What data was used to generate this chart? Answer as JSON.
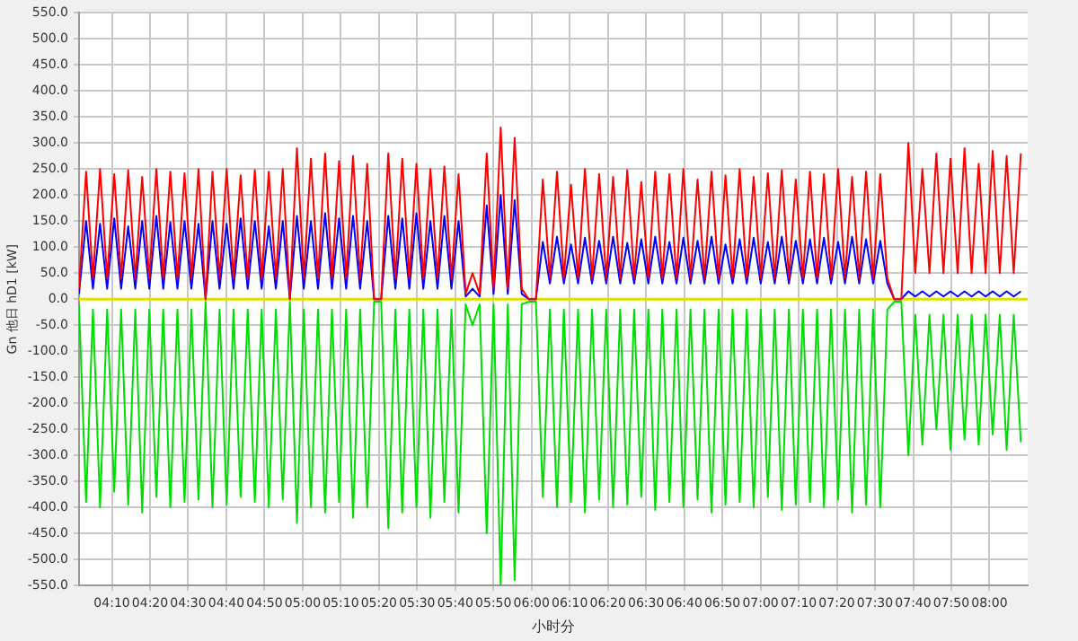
{
  "chart_data": {
    "type": "line",
    "xlabel": "小时分",
    "ylabel": "Gn 他日 hD1 [kW]",
    "marker": "none",
    "line_style": "solid",
    "grid": true,
    "xlim": [
      4.023,
      8.167
    ],
    "xticks": [
      {
        "value": 4.1667,
        "label": "04:10"
      },
      {
        "value": 4.3333,
        "label": "04:20"
      },
      {
        "value": 4.5,
        "label": "04:30"
      },
      {
        "value": 4.6667,
        "label": "04:40"
      },
      {
        "value": 4.8333,
        "label": "04:50"
      },
      {
        "value": 5,
        "label": "05:00"
      },
      {
        "value": 5.1667,
        "label": "05:10"
      },
      {
        "value": 5.3333,
        "label": "05:20"
      },
      {
        "value": 5.5,
        "label": "05:30"
      },
      {
        "value": 5.6667,
        "label": "05:40"
      },
      {
        "value": 5.8333,
        "label": "05:50"
      },
      {
        "value": 6,
        "label": "06:00"
      },
      {
        "value": 6.1667,
        "label": "06:10"
      },
      {
        "value": 6.3333,
        "label": "06:20"
      },
      {
        "value": 6.5,
        "label": "06:30"
      },
      {
        "value": 6.6667,
        "label": "06:40"
      },
      {
        "value": 6.8333,
        "label": "06:50"
      },
      {
        "value": 7,
        "label": "07:00"
      },
      {
        "value": 7.1667,
        "label": "07:10"
      },
      {
        "value": 7.3333,
        "label": "07:20"
      },
      {
        "value": 7.5,
        "label": "07:30"
      },
      {
        "value": 7.6667,
        "label": "07:40"
      },
      {
        "value": 7.8333,
        "label": "07:50"
      },
      {
        "value": 8,
        "label": "08:00"
      }
    ],
    "ylim": [
      -550,
      550
    ],
    "yticks": [
      {
        "value": -550,
        "label": "-550.0"
      },
      {
        "value": -500,
        "label": "-500.0"
      },
      {
        "value": -450,
        "label": "-450.0"
      },
      {
        "value": -400,
        "label": "-400.0"
      },
      {
        "value": -350,
        "label": "-350.0"
      },
      {
        "value": -300,
        "label": "-300.0"
      },
      {
        "value": -250,
        "label": "-250.0"
      },
      {
        "value": -200,
        "label": "-200.0"
      },
      {
        "value": -150,
        "label": "-150.0"
      },
      {
        "value": -100,
        "label": "-100.0"
      },
      {
        "value": -50,
        "label": "-50.0"
      },
      {
        "value": 0,
        "label": "0.0"
      },
      {
        "value": 50,
        "label": "50.0"
      },
      {
        "value": 100,
        "label": "100.0"
      },
      {
        "value": 150,
        "label": "150.0"
      },
      {
        "value": 200,
        "label": "200.0"
      },
      {
        "value": 250,
        "label": "250.0"
      },
      {
        "value": 300,
        "label": "300.0"
      },
      {
        "value": 350,
        "label": "350.0"
      },
      {
        "value": 400,
        "label": "400.0"
      },
      {
        "value": 450,
        "label": "450.0"
      },
      {
        "value": 500,
        "label": "500.0"
      },
      {
        "value": 550,
        "label": "550.0"
      }
    ],
    "ref_lines": [
      {
        "axis": "y",
        "value": 0,
        "color": "#e0e000"
      }
    ],
    "x": [
      4.023,
      4.054,
      4.084,
      4.115,
      4.146,
      4.177,
      4.207,
      4.238,
      4.269,
      4.299,
      4.33,
      4.361,
      4.391,
      4.422,
      4.453,
      4.484,
      4.514,
      4.545,
      4.576,
      4.606,
      4.637,
      4.668,
      4.698,
      4.729,
      4.76,
      4.791,
      4.821,
      4.852,
      4.883,
      4.913,
      4.944,
      4.975,
      5.005,
      5.036,
      5.067,
      5.098,
      5.128,
      5.159,
      5.19,
      5.22,
      5.251,
      5.282,
      5.312,
      5.343,
      5.374,
      5.405,
      5.435,
      5.466,
      5.497,
      5.527,
      5.558,
      5.589,
      5.619,
      5.65,
      5.681,
      5.712,
      5.742,
      5.773,
      5.804,
      5.834,
      5.865,
      5.896,
      5.926,
      5.957,
      5.988,
      6.019,
      6.049,
      6.08,
      6.111,
      6.141,
      6.172,
      6.203,
      6.233,
      6.264,
      6.295,
      6.326,
      6.356,
      6.387,
      6.418,
      6.448,
      6.479,
      6.51,
      6.54,
      6.571,
      6.602,
      6.633,
      6.663,
      6.694,
      6.725,
      6.755,
      6.786,
      6.817,
      6.847,
      6.878,
      6.909,
      6.94,
      6.97,
      7.001,
      7.032,
      7.062,
      7.093,
      7.124,
      7.154,
      7.185,
      7.216,
      7.247,
      7.277,
      7.308,
      7.339,
      7.369,
      7.4,
      7.431,
      7.461,
      7.492,
      7.523,
      7.554,
      7.584,
      7.615,
      7.646,
      7.676,
      7.707,
      7.738,
      7.768,
      7.799,
      7.83,
      7.861,
      7.891,
      7.922,
      7.953,
      7.983,
      8.014,
      8.045,
      8.075,
      8.106,
      8.137
    ],
    "series": [
      {
        "color": "#ff0000",
        "values": [
          20,
          245,
          40,
          250,
          40,
          240,
          40,
          248,
          40,
          235,
          40,
          250,
          40,
          245,
          40,
          242,
          40,
          250,
          0,
          245,
          40,
          250,
          40,
          238,
          40,
          248,
          40,
          245,
          40,
          250,
          0,
          290,
          40,
          270,
          40,
          280,
          40,
          265,
          40,
          275,
          40,
          260,
          0,
          0,
          280,
          40,
          270,
          40,
          260,
          40,
          250,
          40,
          255,
          40,
          240,
          10,
          50,
          10,
          280,
          20,
          330,
          20,
          310,
          20,
          0,
          0,
          230,
          40,
          245,
          40,
          220,
          40,
          250,
          40,
          240,
          40,
          235,
          40,
          248,
          40,
          225,
          40,
          245,
          40,
          240,
          40,
          250,
          40,
          230,
          40,
          245,
          40,
          238,
          40,
          250,
          40,
          235,
          40,
          242,
          40,
          248,
          40,
          230,
          40,
          245,
          40,
          240,
          40,
          250,
          40,
          235,
          40,
          245,
          40,
          240,
          40,
          0,
          0,
          300,
          50,
          250,
          50,
          280,
          50,
          270,
          50,
          290,
          50,
          260,
          50,
          285,
          50,
          275,
          50,
          280
        ]
      },
      {
        "color": "#0000ff",
        "values": [
          10,
          150,
          20,
          145,
          20,
          155,
          20,
          140,
          20,
          150,
          20,
          160,
          20,
          148,
          20,
          150,
          20,
          145,
          0,
          150,
          20,
          145,
          20,
          155,
          20,
          150,
          20,
          140,
          20,
          150,
          0,
          160,
          20,
          150,
          20,
          165,
          20,
          155,
          20,
          160,
          20,
          150,
          0,
          0,
          160,
          20,
          155,
          20,
          165,
          20,
          150,
          20,
          160,
          20,
          150,
          5,
          20,
          5,
          180,
          10,
          200,
          10,
          190,
          10,
          0,
          0,
          110,
          30,
          120,
          30,
          105,
          30,
          118,
          30,
          112,
          30,
          120,
          30,
          108,
          30,
          115,
          30,
          120,
          30,
          110,
          30,
          118,
          30,
          112,
          30,
          120,
          30,
          105,
          30,
          115,
          30,
          118,
          30,
          110,
          30,
          120,
          30,
          112,
          30,
          115,
          30,
          118,
          30,
          110,
          30,
          120,
          30,
          115,
          30,
          112,
          30,
          0,
          0,
          15,
          5,
          15,
          5,
          15,
          5,
          15,
          5,
          15,
          5,
          15,
          5,
          15,
          5,
          15,
          5,
          15
        ]
      },
      {
        "color": "#00dd00",
        "values": [
          -10,
          -390,
          -20,
          -400,
          -20,
          -370,
          -20,
          -395,
          -20,
          -410,
          -20,
          -380,
          -20,
          -400,
          -20,
          -390,
          -20,
          -385,
          -5,
          -400,
          -20,
          -395,
          -20,
          -380,
          -20,
          -390,
          -20,
          -400,
          -20,
          -385,
          -5,
          -430,
          -20,
          -400,
          -20,
          -410,
          -20,
          -390,
          -20,
          -420,
          -20,
          -400,
          -5,
          -5,
          -440,
          -20,
          -410,
          -20,
          -400,
          -20,
          -420,
          -20,
          -390,
          -20,
          -410,
          -10,
          -50,
          -10,
          -450,
          -10,
          -550,
          -10,
          -540,
          -10,
          -5,
          -5,
          -380,
          -20,
          -400,
          -20,
          -390,
          -20,
          -410,
          -20,
          -385,
          -20,
          -400,
          -20,
          -395,
          -20,
          -380,
          -20,
          -405,
          -20,
          -390,
          -20,
          -400,
          -20,
          -385,
          -20,
          -410,
          -20,
          -395,
          -20,
          -390,
          -20,
          -400,
          -20,
          -380,
          -20,
          -405,
          -20,
          -395,
          -20,
          -390,
          -20,
          -400,
          -20,
          -385,
          -20,
          -410,
          -20,
          -395,
          -20,
          -400,
          -20,
          -5,
          -5,
          -300,
          -30,
          -280,
          -30,
          -250,
          -30,
          -290,
          -30,
          -270,
          -30,
          -280,
          -30,
          -260,
          -30,
          -290,
          -30,
          -275
        ]
      }
    ]
  }
}
